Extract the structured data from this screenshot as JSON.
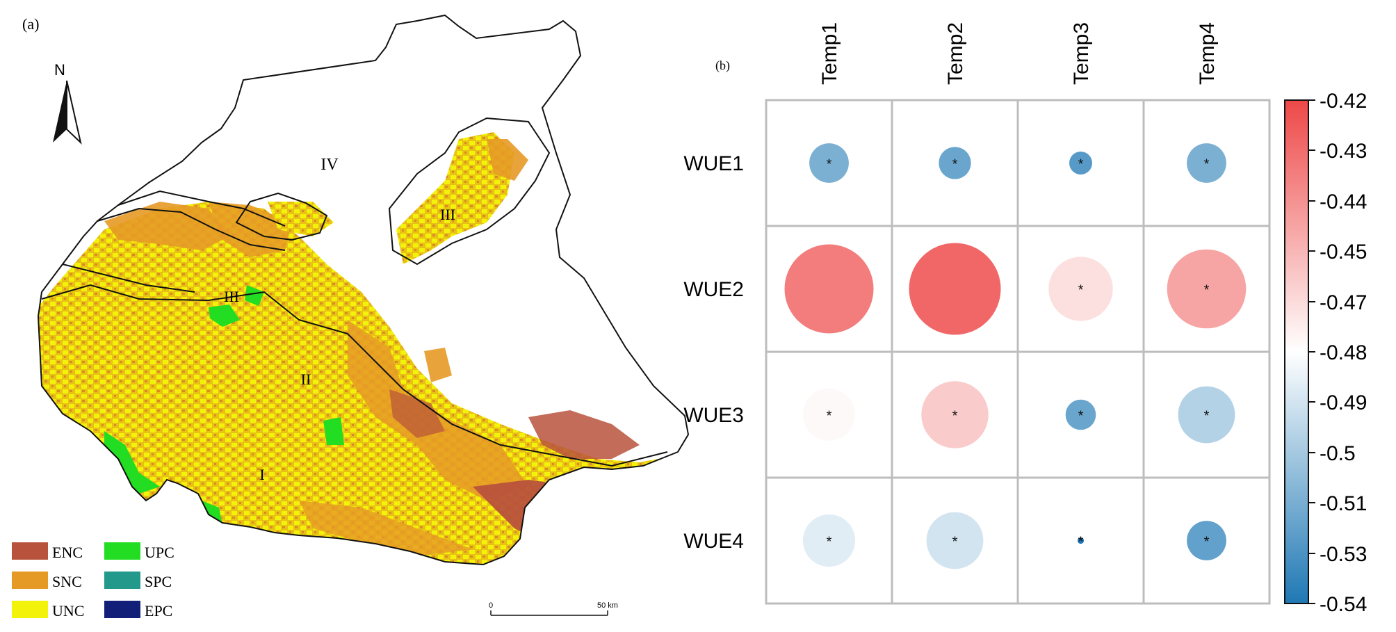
{
  "panel_a": {
    "label": "(a)",
    "north": "N",
    "regions": [
      "IV",
      "III",
      "III",
      "II",
      "I"
    ],
    "legend": [
      {
        "label": "ENC",
        "color": "#b8523c"
      },
      {
        "label": "UPC",
        "color": "#22dd22"
      },
      {
        "label": "SNC",
        "color": "#e69a26"
      },
      {
        "label": "SPC",
        "color": "#22998a"
      },
      {
        "label": "UNC",
        "color": "#f2f20a"
      },
      {
        "label": "EPC",
        "color": "#121f78"
      }
    ],
    "scale": {
      "start": "0",
      "end": "50 km"
    }
  },
  "panel_b": {
    "label": "(b)"
  },
  "chart_data": {
    "type": "heatmap",
    "variant": "correlation-circles",
    "columns": [
      "Temp1",
      "Temp2",
      "Temp3",
      "Temp4"
    ],
    "rows": [
      "WUE1",
      "WUE2",
      "WUE3",
      "WUE4"
    ],
    "values": [
      [
        -0.515,
        -0.52,
        -0.525,
        -0.515
      ],
      [
        -0.437,
        -0.43,
        -0.47,
        -0.45
      ],
      [
        -0.478,
        -0.463,
        -0.52,
        -0.5
      ],
      [
        -0.488,
        -0.492,
        -0.54,
        -0.522
      ]
    ],
    "magnitude": [
      [
        0.43,
        0.35,
        0.25,
        0.43
      ],
      [
        0.97,
        1.0,
        0.7,
        0.86
      ],
      [
        0.57,
        0.73,
        0.33,
        0.62
      ],
      [
        0.57,
        0.62,
        0.07,
        0.43
      ]
    ],
    "significant": [
      [
        true,
        true,
        true,
        true
      ],
      [
        false,
        false,
        true,
        true
      ],
      [
        true,
        true,
        true,
        true
      ],
      [
        true,
        true,
        true,
        true
      ]
    ],
    "color_range": [
      -0.54,
      -0.42
    ],
    "colorbar_ticks": [
      "-0.42",
      "-0.43",
      "-0.44",
      "-0.45",
      "-0.47",
      "-0.48",
      "-0.49",
      "-0.5",
      "-0.51",
      "-0.53",
      "-0.54"
    ],
    "colors": {
      "high": "#ee4848",
      "mid": "#ffffff",
      "low": "#1f78b4"
    }
  }
}
